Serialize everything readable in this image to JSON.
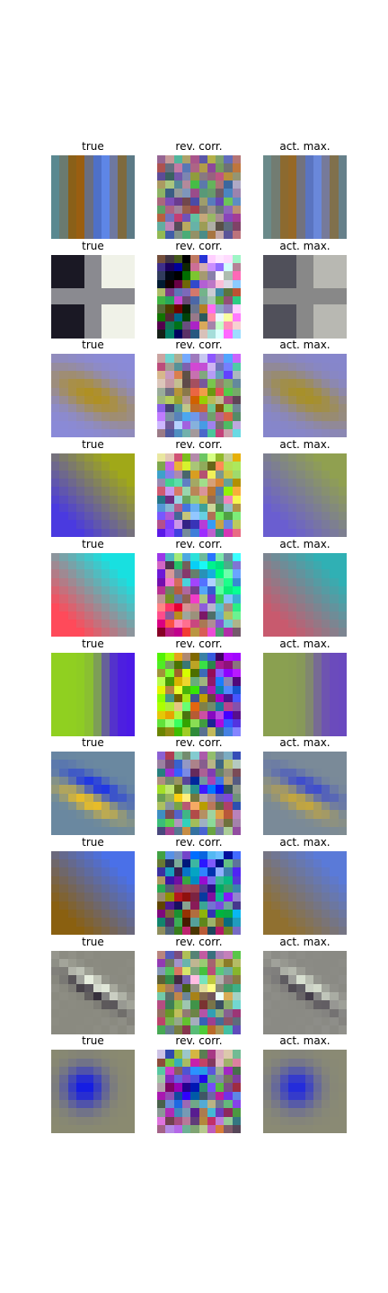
{
  "figure": {
    "column_titles": [
      "true",
      "rev. corr.",
      "act. max."
    ]
  },
  "rows": [
    {
      "true": {
        "kind": "stripes",
        "cols": [
          "#5a8890",
          "#6a7a70",
          "#8a6018",
          "#9a5e10",
          "#6a6e80",
          "#4e70c8",
          "#5e86e6",
          "#6e78a0",
          "#7e6a3e",
          "#5c7a86"
        ]
      },
      "rev_corr": {
        "kind": "noise",
        "base": [
          "#5a8890",
          "#6a7a70",
          "#8a6018",
          "#9a5e10",
          "#6a6e80",
          "#4e70c8",
          "#5e86e6",
          "#6e78a0",
          "#7e6a3e",
          "#5c7a86"
        ],
        "noise": 0.55
      },
      "act_max": {
        "kind": "stripes",
        "cols": [
          "#6a8a8a",
          "#727c72",
          "#8c6a30",
          "#966826",
          "#72727e",
          "#5a74c0",
          "#6a88da",
          "#767a9a",
          "#80704c",
          "#66808a"
        ]
      }
    },
    {
      "true": {
        "kind": "checker",
        "a": "#1a1824",
        "b": "#f0f2e8",
        "mid": "#8a8a90"
      },
      "rev_corr": {
        "kind": "checker-noise",
        "a": "#203040",
        "b": "#e0c0e0",
        "mid": "#807a80",
        "noise": 0.7
      },
      "act_max": {
        "kind": "checker",
        "a": "#50505a",
        "b": "#b8b8b2",
        "mid": "#888888"
      }
    },
    {
      "true": {
        "kind": "blob",
        "bg": "#8a8ad8",
        "fg": "#b09020",
        "angle": -0.45,
        "sx": 0.42,
        "sy": 0.16
      },
      "rev_corr": {
        "kind": "blob-noise",
        "bg": "#8a8ad0",
        "fg": "#b09a30",
        "angle": -0.45,
        "sx": 0.42,
        "sy": 0.16,
        "noise": 0.6
      },
      "act_max": {
        "kind": "blob",
        "bg": "#8686cc",
        "fg": "#a89026",
        "angle": -0.45,
        "sx": 0.42,
        "sy": 0.16
      }
    },
    {
      "true": {
        "kind": "diag",
        "a": "#4a3ae0",
        "b": "#a0a818",
        "dir": 1
      },
      "rev_corr": {
        "kind": "diag-noise",
        "a": "#7a6ae0",
        "b": "#b0c040",
        "dir": 1,
        "noise": 0.7
      },
      "act_max": {
        "kind": "diag",
        "a": "#6a5ed0",
        "b": "#90a050",
        "dir": 1
      }
    },
    {
      "true": {
        "kind": "diag",
        "a": "#ff4a5a",
        "b": "#18e0e0",
        "dir": -1
      },
      "rev_corr": {
        "kind": "diag-noise",
        "a": "#e04060",
        "b": "#30c8d8",
        "dir": -1,
        "noise": 0.7
      },
      "act_max": {
        "kind": "diag",
        "a": "#c85a6e",
        "b": "#30b0b4",
        "dir": -1
      }
    },
    {
      "true": {
        "kind": "split",
        "a": "#90d020",
        "b": "#4a18e8"
      },
      "rev_corr": {
        "kind": "split-noise",
        "a": "#90c030",
        "b": "#5a28d8",
        "noise": 0.75
      },
      "act_max": {
        "kind": "split",
        "a": "#8aa050",
        "b": "#6a48c0"
      }
    },
    {
      "true": {
        "kind": "bands",
        "bg": "#6a88a0",
        "a": "#1a30e8",
        "b": "#f0c020"
      },
      "rev_corr": {
        "kind": "bands-noise",
        "bg": "#7a8890",
        "a": "#2a38d8",
        "b": "#d8c030",
        "noise": 0.6
      },
      "act_max": {
        "kind": "bands",
        "bg": "#7a8a98",
        "a": "#3a48d0",
        "b": "#c8a838"
      }
    },
    {
      "true": {
        "kind": "diag",
        "a": "#8a6010",
        "b": "#4a70e8",
        "dir": 1
      },
      "rev_corr": {
        "kind": "diag-noise",
        "a": "#6a5a30",
        "b": "#3a68d0",
        "dir": 1,
        "noise": 0.7
      },
      "act_max": {
        "kind": "diag",
        "a": "#907030",
        "b": "#5a7ad8",
        "dir": 1
      }
    },
    {
      "true": {
        "kind": "edge",
        "bg": "#8a8a80",
        "a": "#201828",
        "b": "#f0f8e8"
      },
      "rev_corr": {
        "kind": "edge-noise",
        "bg": "#7a8070",
        "a": "#302040",
        "b": "#e8f8d8",
        "noise": 0.6
      },
      "act_max": {
        "kind": "edge",
        "bg": "#8a8a84",
        "a": "#302838",
        "b": "#e0e8d8"
      }
    },
    {
      "true": {
        "kind": "dot",
        "bg": "#8a8a70",
        "fg": "#1018e8"
      },
      "rev_corr": {
        "kind": "dot-noise",
        "bg": "#8a7a90",
        "fg": "#2020e0",
        "noise": 0.7
      },
      "act_max": {
        "kind": "dot",
        "bg": "#8a8a74",
        "fg": "#2028e0"
      }
    }
  ]
}
